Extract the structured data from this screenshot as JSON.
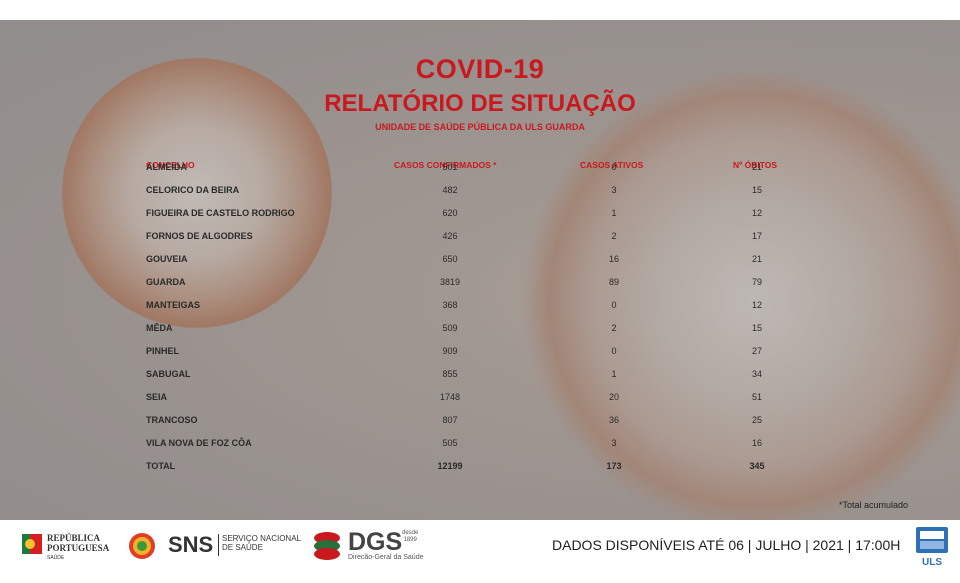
{
  "report": {
    "title": "COVID-19",
    "subtitle": "RELATÓRIO DE SITUAÇÃO",
    "unit": "UNIDADE DE SAÚDE PÚBLICA DA ULS GUARDA"
  },
  "table": {
    "headers": [
      "CONCELHO",
      "CASOS CONFIRMADOS *",
      "CASOS ATIVOS",
      "Nº ÓBITOS"
    ],
    "rows": [
      [
        "ALMEIDA",
        "501",
        "0",
        "21"
      ],
      [
        "CELORICO DA BEIRA",
        "482",
        "3",
        "15"
      ],
      [
        "FIGUEIRA DE CASTELO RODRIGO",
        "620",
        "1",
        "12"
      ],
      [
        "FORNOS DE ALGODRES",
        "426",
        "2",
        "17"
      ],
      [
        "GOUVEIA",
        "650",
        "16",
        "21"
      ],
      [
        "GUARDA",
        "3819",
        "89",
        "79"
      ],
      [
        "MANTEIGAS",
        "368",
        "0",
        "12"
      ],
      [
        "MÊDA",
        "509",
        "2",
        "15"
      ],
      [
        "PINHEL",
        "909",
        "0",
        "27"
      ],
      [
        "SABUGAL",
        "855",
        "1",
        "34"
      ],
      [
        "SEIA",
        "1748",
        "20",
        "51"
      ],
      [
        "TRANCOSO",
        "807",
        "36",
        "25"
      ],
      [
        "VILA NOVA DE FOZ CÔA",
        "505",
        "3",
        "16"
      ]
    ],
    "total": [
      "TOTAL",
      "12199",
      "173",
      "345"
    ],
    "note": "*Total acumulado"
  },
  "footer": {
    "republica_line1": "REPÚBLICA",
    "republica_line2": "PORTUGUESA",
    "republica_sub": "SAÚDE",
    "sns": "SNS",
    "sns_line1": "SERVIÇO NACIONAL",
    "sns_line2": "DE SAÚDE",
    "dgs": "DGS",
    "dgs_since_1": "desde",
    "dgs_since_2": "1899",
    "dgs_sub": "Direcão-Geral da Saúde",
    "dados": "DADOS DISPONÍVEIS ATÉ 06 | JULHO | 2021 | 17:00H",
    "uls": "ULS"
  },
  "colors": {
    "accent": "#c9191f",
    "text": "#2a2a2a"
  }
}
